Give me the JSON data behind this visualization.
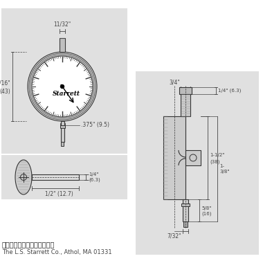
{
  "bg_color": "#e0e0e0",
  "white_bg": "#ffffff",
  "line_color": "#333333",
  "dim_color": "#444444",
  "title_cn": "表盘带免费起草的模板，写着",
  "title_en": "The L.S. Starrett Co., Athol, MA 01331",
  "brand": "Starrett"
}
